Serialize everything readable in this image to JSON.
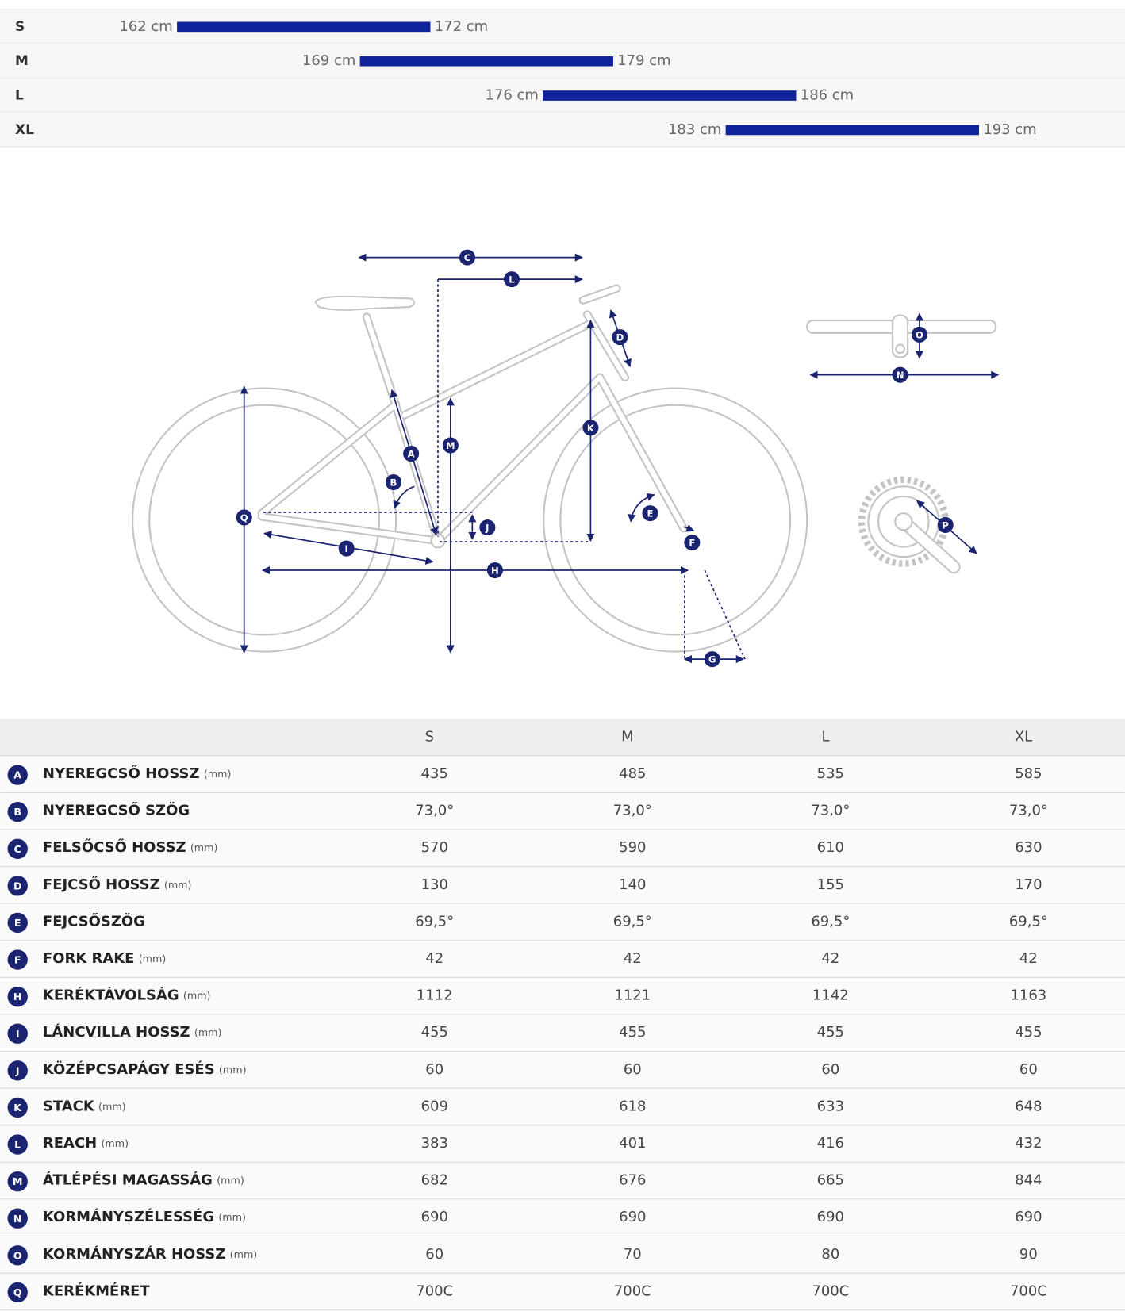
{
  "size_chart": {
    "rows": [
      {
        "size": "S",
        "min": "162 cm",
        "max": "172 cm"
      },
      {
        "size": "M",
        "min": "169 cm",
        "max": "179 cm"
      },
      {
        "size": "L",
        "min": "176 cm",
        "max": "186 cm"
      },
      {
        "size": "XL",
        "min": "183 cm",
        "max": "193 cm"
      }
    ]
  },
  "diagram": {
    "labels": [
      "A",
      "B",
      "C",
      "D",
      "E",
      "F",
      "G",
      "H",
      "I",
      "J",
      "K",
      "L",
      "M",
      "N",
      "O",
      "P",
      "Q"
    ]
  },
  "geometry": {
    "columns": [
      "S",
      "M",
      "L",
      "XL"
    ],
    "rows": [
      {
        "letter": "A",
        "name": "NYEREGCSŐ HOSSZ",
        "unit": "(mm)",
        "values": [
          "435",
          "485",
          "535",
          "585"
        ]
      },
      {
        "letter": "B",
        "name": "NYEREGCSŐ SZÖG",
        "values": [
          "73,0°",
          "73,0°",
          "73,0°",
          "73,0°"
        ]
      },
      {
        "letter": "C",
        "name": "FELSŐCSŐ HOSSZ",
        "unit": "(mm)",
        "values": [
          "570",
          "590",
          "610",
          "630"
        ]
      },
      {
        "letter": "D",
        "name": "FEJCSŐ HOSSZ",
        "unit": "(mm)",
        "values": [
          "130",
          "140",
          "155",
          "170"
        ]
      },
      {
        "letter": "E",
        "name": "FEJCSŐSZÖG",
        "values": [
          "69,5°",
          "69,5°",
          "69,5°",
          "69,5°"
        ]
      },
      {
        "letter": "F",
        "name": "FORK RAKE",
        "unit": "(mm)",
        "values": [
          "42",
          "42",
          "42",
          "42"
        ]
      },
      {
        "letter": "H",
        "name": "KERÉKTÁVOLSÁG",
        "unit": "(mm)",
        "values": [
          "1112",
          "1121",
          "1142",
          "1163"
        ]
      },
      {
        "letter": "I",
        "name": "LÁNCVILLA HOSSZ",
        "unit": "(mm)",
        "values": [
          "455",
          "455",
          "455",
          "455"
        ]
      },
      {
        "letter": "J",
        "name": "KÖZÉPCSAPÁGY ESÉS",
        "unit": "(mm)",
        "values": [
          "60",
          "60",
          "60",
          "60"
        ]
      },
      {
        "letter": "K",
        "name": "STACK",
        "unit": "(mm)",
        "values": [
          "609",
          "618",
          "633",
          "648"
        ]
      },
      {
        "letter": "L",
        "name": "REACH",
        "unit": "(mm)",
        "values": [
          "383",
          "401",
          "416",
          "432"
        ]
      },
      {
        "letter": "M",
        "name": "ÁTLÉPÉSI MAGASSÁG",
        "unit": "(mm)",
        "values": [
          "682",
          "676",
          "665",
          "844"
        ]
      },
      {
        "letter": "N",
        "name": "KORMÁNYSZÉLESSÉG",
        "unit": "(mm)",
        "values": [
          "690",
          "690",
          "690",
          "690"
        ]
      },
      {
        "letter": "O",
        "name": "KORMÁNYSZÁR HOSSZ",
        "unit": "(mm)",
        "values": [
          "60",
          "70",
          "80",
          "90"
        ]
      },
      {
        "letter": "Q",
        "name": "KERÉKMÉRET",
        "values": [
          "700C",
          "700C",
          "700C",
          "700C"
        ]
      }
    ]
  }
}
